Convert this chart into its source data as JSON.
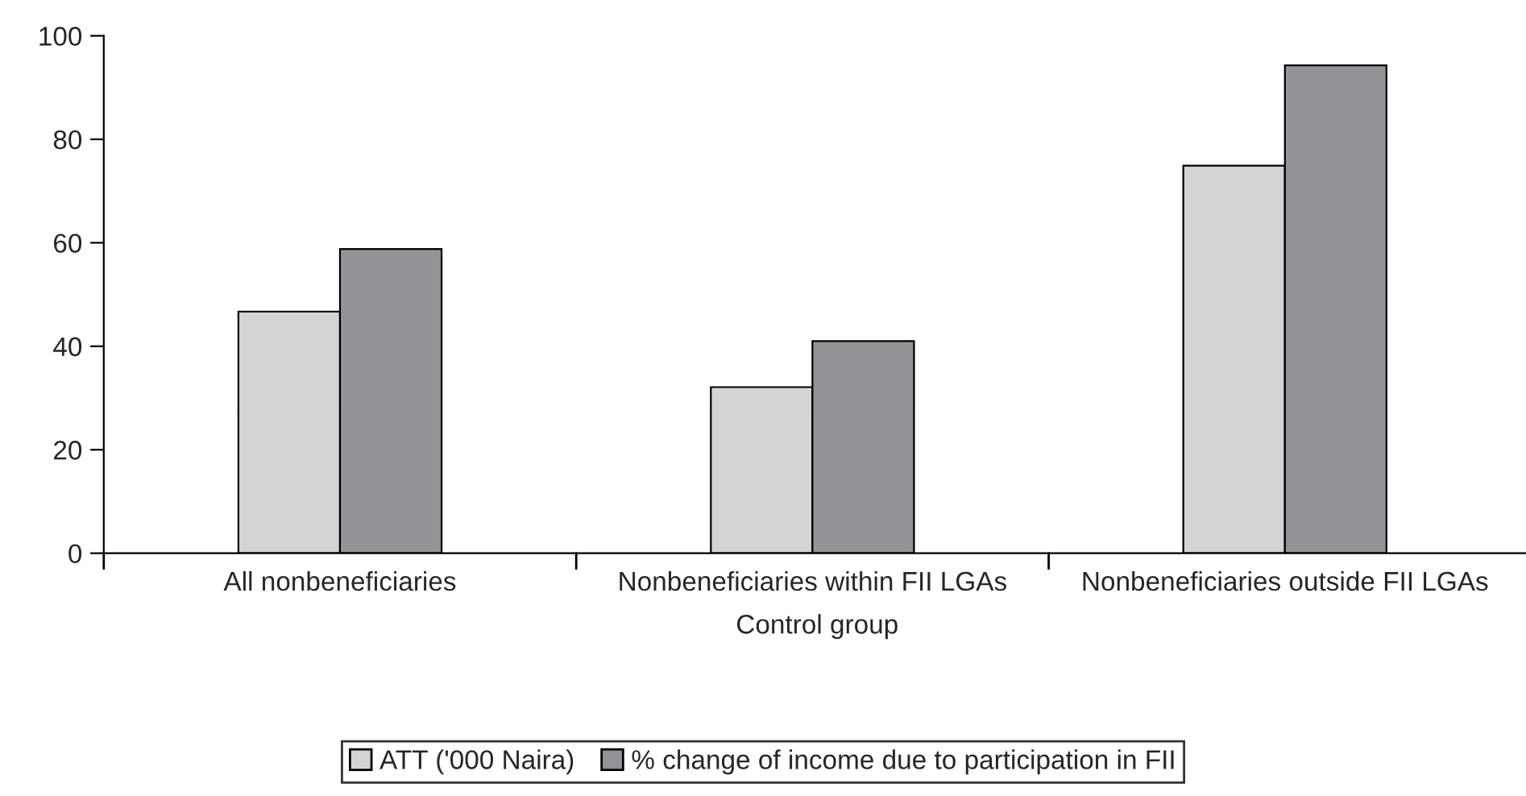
{
  "chart_data": {
    "type": "bar",
    "xlabel": "Control group",
    "categories": [
      "All nonbeneficiaries",
      "Nonbeneficiaries within FII LGAs",
      "Nonbeneficiaries outside FII LGAs"
    ],
    "series": [
      {
        "name": "ATT ('000 Naira)",
        "color": "#d3d4d6",
        "values": [
          46.7,
          32.1,
          74.9
        ]
      },
      {
        "name": "% change of income due to participation in FII",
        "color": "#939498",
        "values": [
          58.8,
          41.0,
          94.3
        ]
      }
    ],
    "ylim": [
      0,
      100
    ],
    "yticks": [
      0,
      20,
      40,
      60,
      80,
      100
    ],
    "grid": false,
    "legend": "bottom"
  }
}
